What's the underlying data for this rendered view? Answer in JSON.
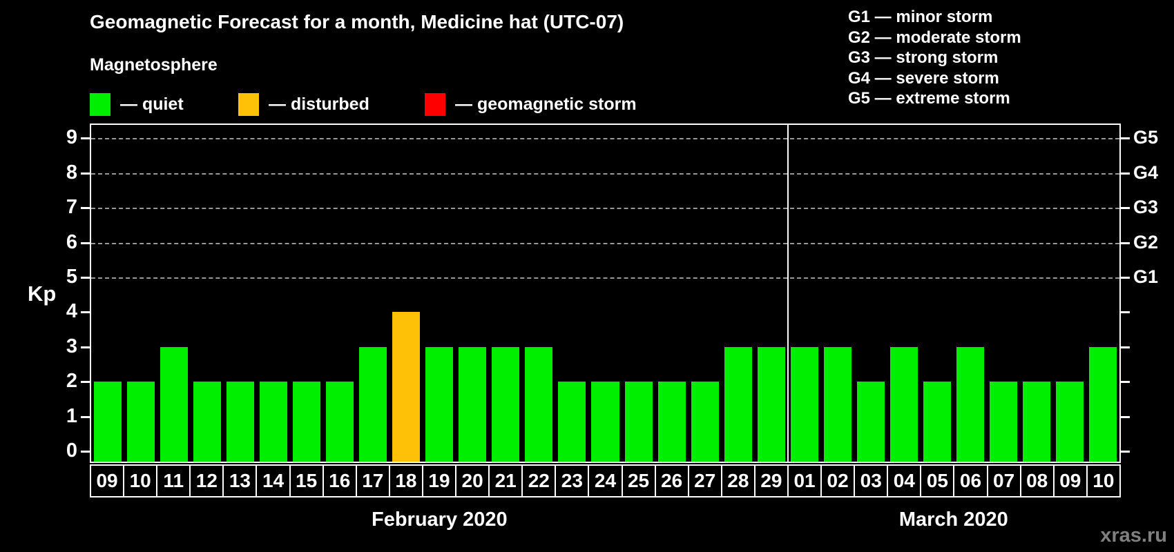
{
  "title": "Geomagnetic Forecast for a month, Medicine hat (UTC-07)",
  "subtitle": "Magnetosphere",
  "magnetosphere_legend": [
    {
      "status": "quiet",
      "label": "— quiet",
      "color": "#00EE00"
    },
    {
      "status": "disturbed",
      "label": "— disturbed",
      "color": "#FFC107"
    },
    {
      "status": "storm",
      "label": "— geomagnetic storm",
      "color": "#FF0000"
    }
  ],
  "storm_scale": [
    "G1 — minor storm",
    "G2 — moderate storm",
    "G3 — strong storm",
    "G4 — severe storm",
    "G5 — extreme storm"
  ],
  "watermark": "xras.ru",
  "chart_data": {
    "type": "bar",
    "ylabel": "Kp",
    "ylim": [
      0,
      9
    ],
    "yticks": [
      0,
      1,
      2,
      3,
      4,
      5,
      6,
      7,
      8,
      9
    ],
    "gridlines_at_kp": [
      5,
      6,
      7,
      8,
      9
    ],
    "grid_style": "dashed",
    "right_axis_labels": [
      {
        "text": "G1",
        "kp": 5
      },
      {
        "text": "G2",
        "kp": 6
      },
      {
        "text": "G3",
        "kp": 7
      },
      {
        "text": "G4",
        "kp": 8
      },
      {
        "text": "G5",
        "kp": 9
      }
    ],
    "status_colors": {
      "quiet": "#00EE00",
      "disturbed": "#FFC107",
      "storm": "#FF0000"
    },
    "months": [
      {
        "label": "February 2020",
        "days": [
          "09",
          "10",
          "11",
          "12",
          "13",
          "14",
          "15",
          "16",
          "17",
          "18",
          "19",
          "20",
          "21",
          "22",
          "23",
          "24",
          "25",
          "26",
          "27",
          "28",
          "29"
        ],
        "values": [
          2,
          2,
          3,
          2,
          2,
          2,
          2,
          2,
          3,
          4,
          3,
          3,
          3,
          3,
          2,
          2,
          2,
          2,
          2,
          3,
          3
        ],
        "statuses": [
          "quiet",
          "quiet",
          "quiet",
          "quiet",
          "quiet",
          "quiet",
          "quiet",
          "quiet",
          "quiet",
          "disturbed",
          "quiet",
          "quiet",
          "quiet",
          "quiet",
          "quiet",
          "quiet",
          "quiet",
          "quiet",
          "quiet",
          "quiet",
          "quiet"
        ]
      },
      {
        "label": "March 2020",
        "days": [
          "01",
          "02",
          "03",
          "04",
          "05",
          "06",
          "07",
          "08",
          "09",
          "10"
        ],
        "values": [
          3,
          3,
          2,
          3,
          2,
          3,
          2,
          2,
          2,
          3
        ],
        "statuses": [
          "quiet",
          "quiet",
          "quiet",
          "quiet",
          "quiet",
          "quiet",
          "quiet",
          "quiet",
          "quiet",
          "quiet"
        ]
      }
    ]
  }
}
